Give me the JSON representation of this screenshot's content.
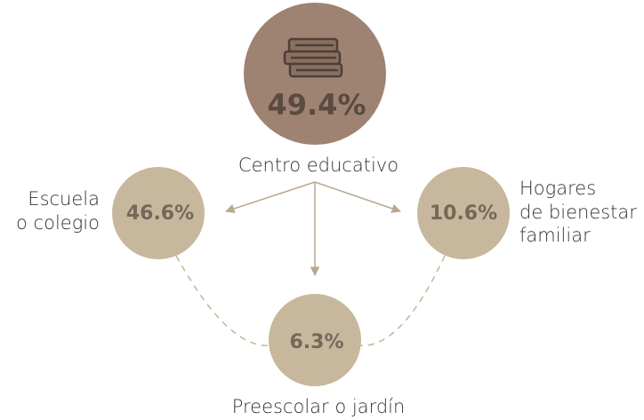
{
  "nodes": [
    {
      "label": [
        "Centro educativo"
      ],
      "value": "49.4%"
    },
    {
      "label": [
        "Escuela",
        "o colegio"
      ],
      "value": "46.6%"
    },
    {
      "label": [
        "Hogares",
        "de bienestar",
        "familiar"
      ],
      "value": "10.6%"
    },
    {
      "label": [
        "Preescolar o jardín"
      ],
      "value": "6.3%"
    }
  ]
}
